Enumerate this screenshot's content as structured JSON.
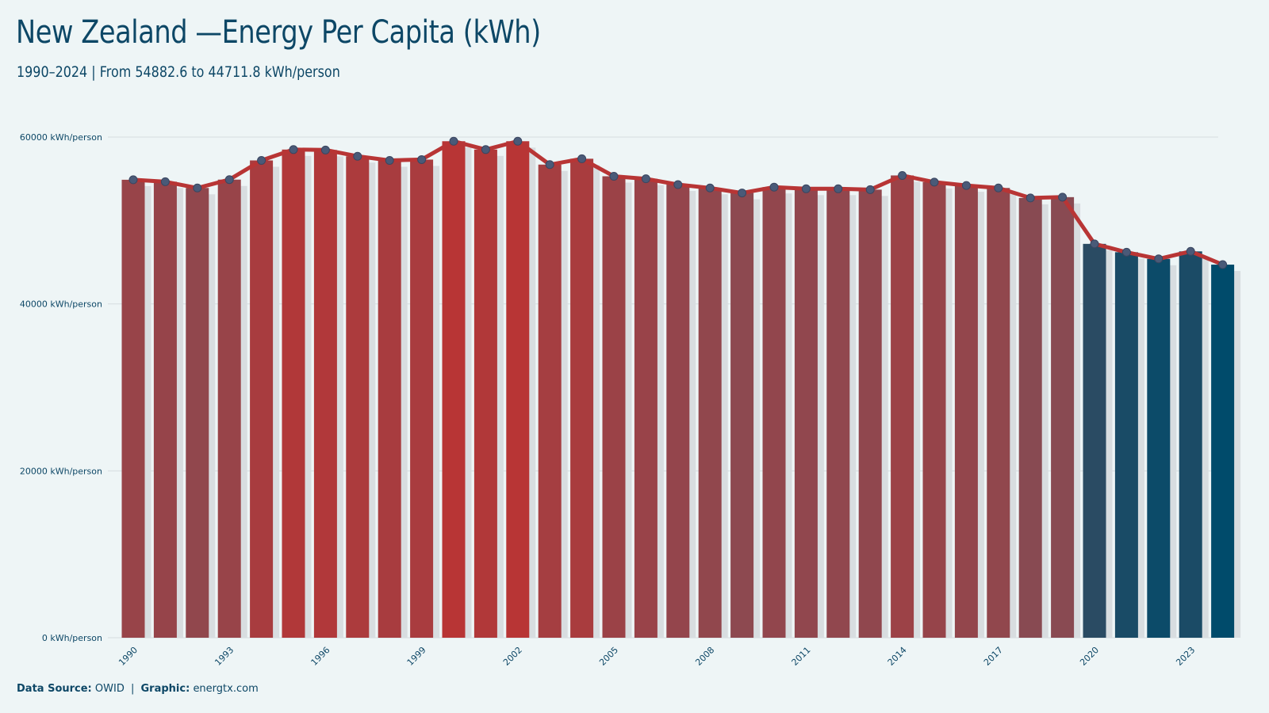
{
  "title": "New Zealand —Energy Per Capita (kWh)",
  "subtitle": "1990–2024 | From 54882.6  to 44711.8  kWh/person",
  "footer": {
    "source_label": "Data Source:",
    "source_value": "OWID",
    "separator": "|",
    "graphic_label": "Graphic:",
    "graphic_value": "energtx.com"
  },
  "colors": {
    "background": "#eef5f6",
    "line": "#b83535",
    "marker": "#4a5a78",
    "text": "#0d4766",
    "grid": "#d6dde0",
    "bar_shadow": "#d8dde0",
    "bar_high": "#b83535",
    "bar_mid": "#8a4a52",
    "bar_low": "#004b6b"
  },
  "chart_data": {
    "type": "bar",
    "x": [
      1990,
      1991,
      1992,
      1993,
      1994,
      1995,
      1996,
      1997,
      1998,
      1999,
      2000,
      2001,
      2002,
      2003,
      2004,
      2005,
      2006,
      2007,
      2008,
      2009,
      2010,
      2011,
      2012,
      2013,
      2014,
      2015,
      2016,
      2017,
      2018,
      2019,
      2020,
      2021,
      2022,
      2023,
      2024
    ],
    "values": [
      54882.6,
      54650,
      53900,
      54900,
      57200,
      58500,
      58450,
      57700,
      57200,
      57300,
      59500,
      58500,
      59500,
      56700,
      57400,
      55300,
      55000,
      54300,
      53900,
      53300,
      54000,
      53800,
      53800,
      53700,
      55400,
      54600,
      54200,
      53900,
      52700,
      52800,
      47200,
      46200,
      45400,
      46300,
      44711.8
    ],
    "series": [
      {
        "type": "line",
        "values": [
          54882.6,
          54650,
          53900,
          54900,
          57200,
          58500,
          58450,
          57700,
          57200,
          57300,
          59500,
          58500,
          59500,
          56700,
          57400,
          55300,
          55000,
          54300,
          53900,
          53300,
          54000,
          53800,
          53800,
          53700,
          55400,
          54600,
          54200,
          53900,
          52700,
          52800,
          47200,
          46200,
          45400,
          46300,
          44711.8
        ]
      }
    ],
    "xticks": [
      "1990",
      "1993",
      "1996",
      "1999",
      "2002",
      "2005",
      "2008",
      "2011",
      "2014",
      "2017",
      "2020",
      "2023"
    ],
    "yticks": [
      {
        "value": 0,
        "label": "0 kWh/person"
      },
      {
        "value": 20000,
        "label": "20000 kWh/person"
      },
      {
        "value": 40000,
        "label": "40000 kWh/person"
      },
      {
        "value": 60000,
        "label": "60000 kWh/person"
      }
    ],
    "ylim": [
      0,
      60000
    ],
    "xlabel": "",
    "ylabel": "",
    "grid": "horizontal",
    "legend": "none"
  }
}
